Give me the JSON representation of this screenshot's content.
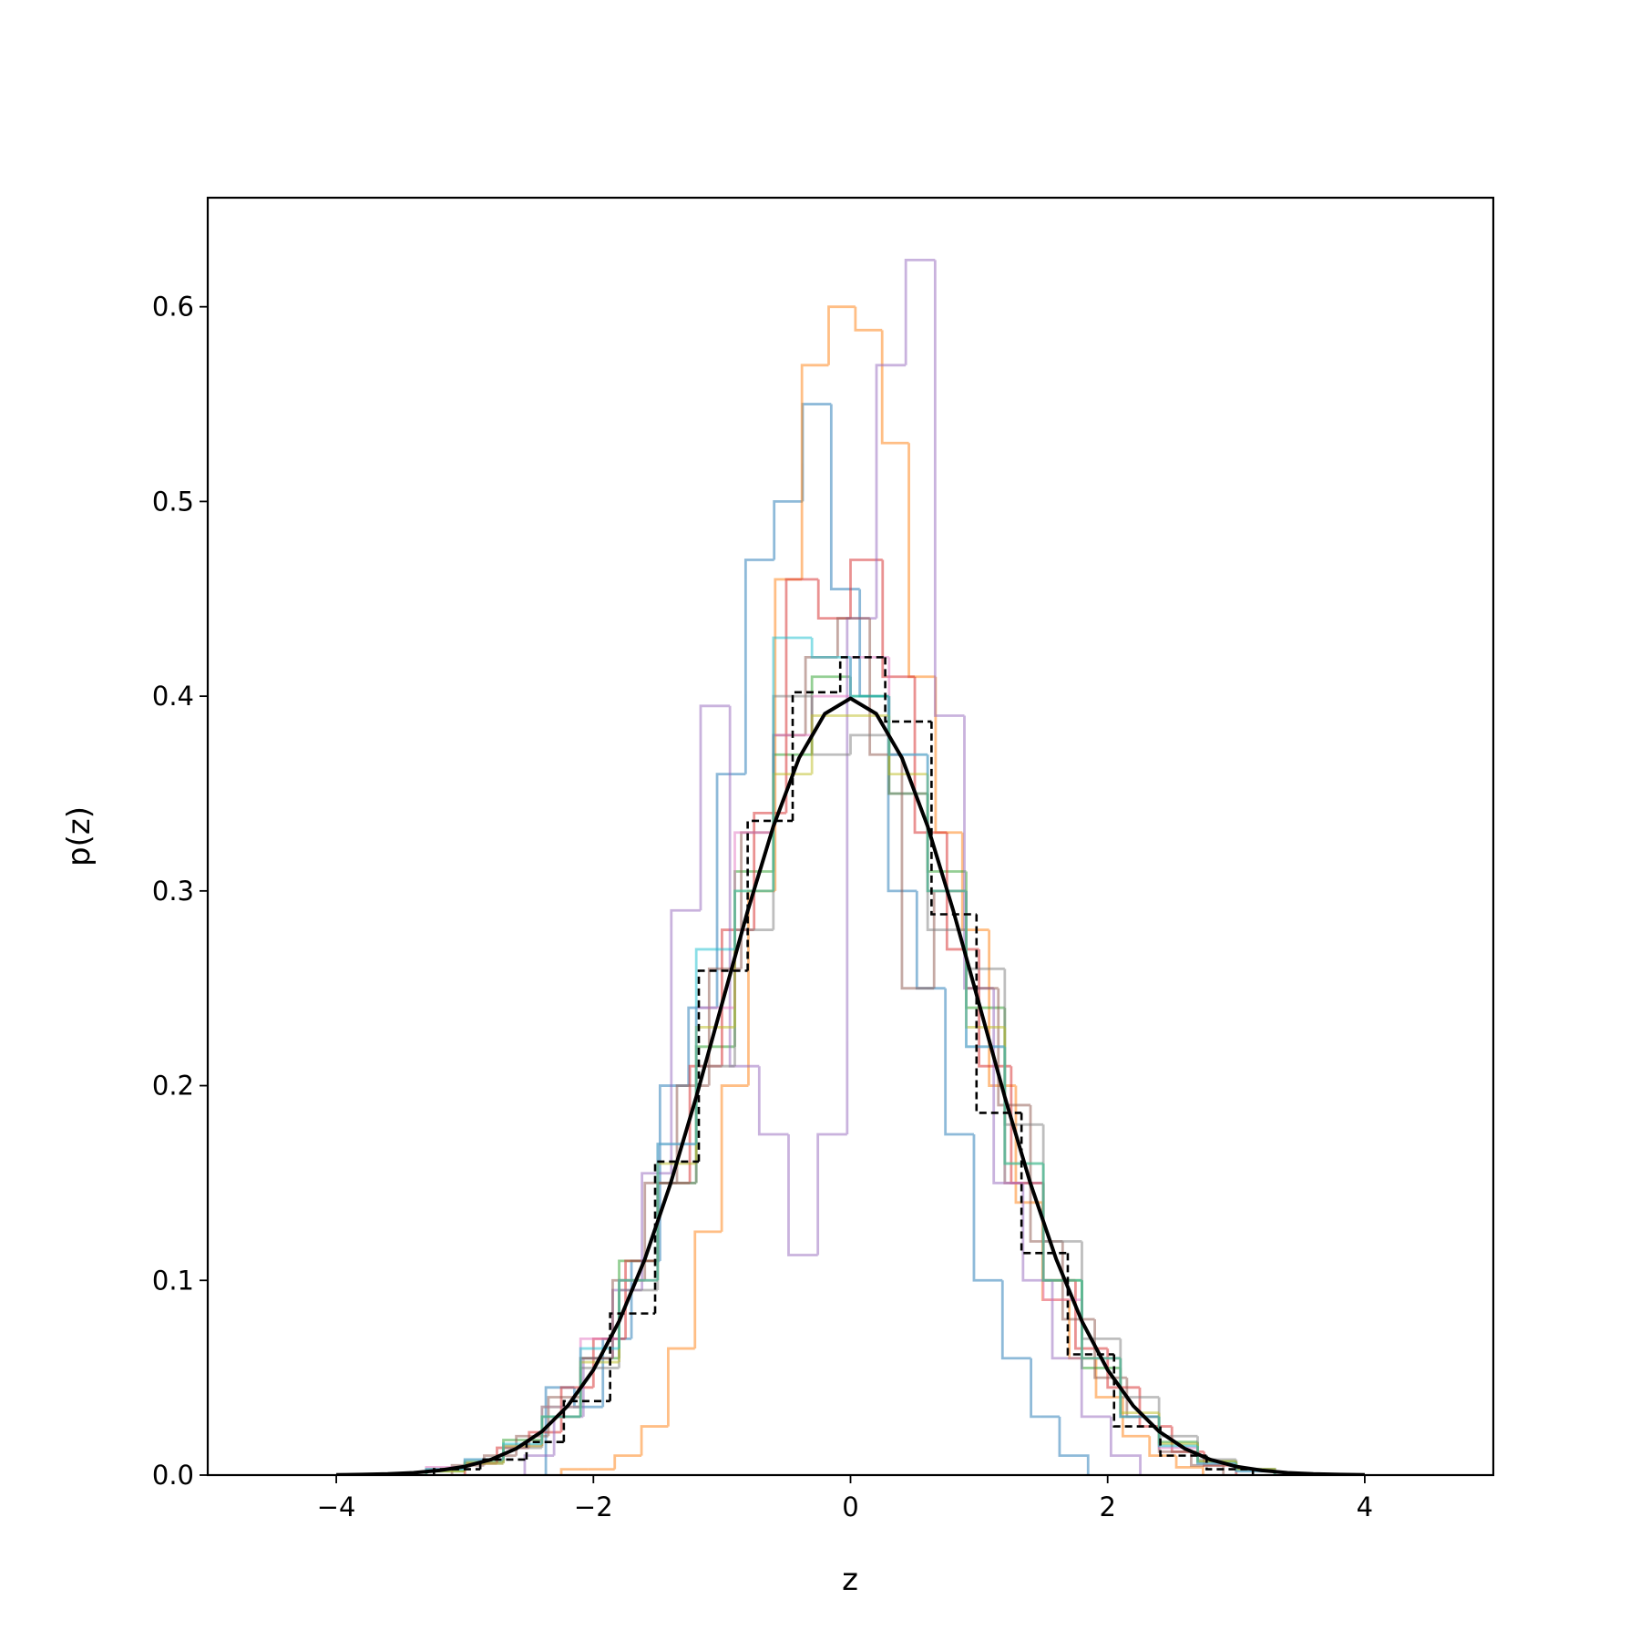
{
  "chart_data": {
    "type": "histogram",
    "xlabel": "z",
    "ylabel": "p(z)",
    "xlim": [
      -5,
      5
    ],
    "ylim": [
      0,
      0.656
    ],
    "xticks": [
      {
        "value": -4,
        "label": "−4"
      },
      {
        "value": -2,
        "label": "−2"
      },
      0,
      2,
      4
    ],
    "yticks": [
      {
        "value": 0,
        "label": "0.0"
      },
      0.1,
      0.2,
      0.3,
      0.4,
      0.5,
      0.6
    ],
    "series": [
      {
        "type": "step",
        "color": "#1f77b4",
        "alpha": 0.5,
        "bins": [
          -2.37,
          -2.148,
          -1.926,
          -1.704,
          -1.482,
          -1.26,
          -1.038,
          -0.816,
          -0.594,
          -0.372,
          -0.15,
          0.072,
          0.294,
          0.516,
          0.738,
          0.96,
          1.182,
          1.404,
          1.626,
          1.848
        ],
        "values": [
          0.045,
          0.035,
          0.07,
          0.11,
          0.2,
          0.24,
          0.36,
          0.47,
          0.5,
          0.55,
          0.455,
          0.4,
          0.3,
          0.25,
          0.175,
          0.1,
          0.06,
          0.03,
          0.01
        ]
      },
      {
        "type": "step",
        "color": "#ff7f0e",
        "alpha": 0.5,
        "bins": [
          -2.25,
          -2.042,
          -1.834,
          -1.626,
          -1.418,
          -1.21,
          -1.002,
          -0.794,
          -0.586,
          -0.378,
          -0.17,
          0.038,
          0.246,
          0.454,
          0.662,
          0.87,
          1.078,
          1.286,
          1.494,
          1.702,
          1.91,
          2.118,
          2.326,
          2.534,
          2.742
        ],
        "values": [
          0.003,
          0.003,
          0.01,
          0.025,
          0.065,
          0.125,
          0.2,
          0.3,
          0.46,
          0.57,
          0.6,
          0.588,
          0.53,
          0.41,
          0.33,
          0.28,
          0.2,
          0.14,
          0.09,
          0.06,
          0.04,
          0.02,
          0.01,
          0.004
        ]
      },
      {
        "type": "step",
        "color": "#2ca02c",
        "alpha": 0.5,
        "bins": [
          -3.3,
          -3.0,
          -2.7,
          -2.4,
          -2.1,
          -1.8,
          -1.5,
          -1.2,
          -0.9,
          -0.6,
          -0.3,
          0,
          0.3,
          0.6,
          0.9,
          1.2,
          1.5,
          1.8,
          2.1,
          2.4,
          2.7,
          3.0,
          3.3
        ],
        "values": [
          0.002,
          0.007,
          0.018,
          0.035,
          0.06,
          0.11,
          0.15,
          0.22,
          0.31,
          0.37,
          0.41,
          0.4,
          0.35,
          0.31,
          0.24,
          0.15,
          0.1,
          0.055,
          0.03,
          0.017,
          0.007,
          0.003
        ]
      },
      {
        "type": "step",
        "color": "#d62728",
        "alpha": 0.5,
        "bins": [
          -3.0,
          -2.75,
          -2.5,
          -2.25,
          -2.0,
          -1.75,
          -1.5,
          -1.25,
          -1.0,
          -0.75,
          -0.5,
          -0.25,
          0,
          0.25,
          0.5,
          0.75,
          1.0,
          1.25,
          1.5,
          1.75,
          2.0,
          2.25,
          2.5,
          2.75,
          3.0
        ],
        "values": [
          0.006,
          0.014,
          0.022,
          0.045,
          0.07,
          0.11,
          0.15,
          0.21,
          0.28,
          0.34,
          0.46,
          0.44,
          0.47,
          0.41,
          0.33,
          0.27,
          0.21,
          0.15,
          0.1,
          0.065,
          0.045,
          0.025,
          0.012,
          0.005
        ]
      },
      {
        "type": "step",
        "color": "#9467bd",
        "alpha": 0.5,
        "bins": [
          -2.534,
          -2.306,
          -2.078,
          -1.85,
          -1.622,
          -1.394,
          -1.166,
          -0.938,
          -0.71,
          -0.482,
          -0.254,
          -0.026,
          0.202,
          0.43,
          0.658,
          0.886,
          1.114,
          1.342,
          1.57,
          1.798,
          2.026,
          2.254
        ],
        "values": [
          0.01,
          0.03,
          0.06,
          0.095,
          0.155,
          0.29,
          0.395,
          0.21,
          0.175,
          0.113,
          0.175,
          0.44,
          0.57,
          0.624,
          0.39,
          0.25,
          0.15,
          0.1,
          0.06,
          0.03,
          0.01
        ]
      },
      {
        "type": "step",
        "color": "#8c564b",
        "alpha": 0.5,
        "bins": [
          -3.1,
          -2.85,
          -2.6,
          -2.35,
          -2.1,
          -1.85,
          -1.6,
          -1.35,
          -1.1,
          -0.85,
          -0.6,
          -0.35,
          -0.1,
          0.15,
          0.4,
          0.65,
          0.9,
          1.15,
          1.4,
          1.65,
          1.9,
          2.15,
          2.4,
          2.65,
          2.9
        ],
        "values": [
          0.005,
          0.01,
          0.02,
          0.04,
          0.06,
          0.1,
          0.15,
          0.2,
          0.26,
          0.33,
          0.38,
          0.42,
          0.44,
          0.37,
          0.25,
          0.3,
          0.25,
          0.19,
          0.12,
          0.08,
          0.05,
          0.03,
          0.012,
          0.005
        ]
      },
      {
        "type": "step",
        "color": "#e377c2",
        "alpha": 0.5,
        "bins": [
          -3.3,
          -3.0,
          -2.7,
          -2.4,
          -2.1,
          -1.8,
          -1.5,
          -1.2,
          -0.9,
          -0.6,
          -0.3,
          0,
          0.3,
          0.6,
          0.9,
          1.2,
          1.5,
          1.8,
          2.1,
          2.4,
          2.7,
          3.0,
          3.3
        ],
        "values": [
          0.004,
          0.008,
          0.015,
          0.035,
          0.07,
          0.1,
          0.17,
          0.24,
          0.33,
          0.38,
          0.4,
          0.42,
          0.37,
          0.3,
          0.22,
          0.15,
          0.09,
          0.06,
          0.03,
          0.014,
          0.006,
          0.002
        ]
      },
      {
        "type": "step",
        "color": "#7f7f7f",
        "alpha": 0.5,
        "bins": [
          -3.3,
          -3.0,
          -2.7,
          -2.4,
          -2.1,
          -1.8,
          -1.5,
          -1.2,
          -0.9,
          -0.6,
          -0.3,
          0,
          0.3,
          0.6,
          0.9,
          1.2,
          1.5,
          1.8,
          2.1,
          2.4,
          2.7,
          3.0,
          3.3
        ],
        "values": [
          0.003,
          0.006,
          0.014,
          0.03,
          0.055,
          0.095,
          0.15,
          0.21,
          0.28,
          0.4,
          0.37,
          0.38,
          0.35,
          0.28,
          0.26,
          0.18,
          0.12,
          0.07,
          0.04,
          0.02,
          0.008,
          0.003
        ]
      },
      {
        "type": "step",
        "color": "#bcbd22",
        "alpha": 0.5,
        "bins": [
          -3.3,
          -3.0,
          -2.7,
          -2.4,
          -2.1,
          -1.8,
          -1.5,
          -1.2,
          -0.9,
          -0.6,
          -0.3,
          0,
          0.3,
          0.6,
          0.9,
          1.2,
          1.5,
          1.8,
          2.1,
          2.4,
          2.7,
          3.0,
          3.3
        ],
        "values": [
          0.002,
          0.006,
          0.015,
          0.03,
          0.058,
          0.1,
          0.16,
          0.23,
          0.3,
          0.36,
          0.39,
          0.39,
          0.36,
          0.3,
          0.23,
          0.16,
          0.1,
          0.06,
          0.032,
          0.016,
          0.007,
          0.003
        ]
      },
      {
        "type": "step",
        "color": "#17becf",
        "alpha": 0.5,
        "bins": [
          -3.3,
          -3.0,
          -2.7,
          -2.4,
          -2.1,
          -1.8,
          -1.5,
          -1.2,
          -0.9,
          -0.6,
          -0.3,
          0,
          0.3,
          0.6,
          0.9,
          1.2,
          1.5,
          1.8,
          2.1,
          2.4,
          2.7,
          3.0,
          3.3
        ],
        "values": [
          0.003,
          0.008,
          0.016,
          0.03,
          0.065,
          0.1,
          0.17,
          0.27,
          0.3,
          0.43,
          0.42,
          0.4,
          0.37,
          0.3,
          0.22,
          0.16,
          0.1,
          0.06,
          0.03,
          0.015,
          0.006,
          0.002
        ]
      },
      {
        "type": "step",
        "color": "#000000",
        "alpha": 1,
        "linestyle": "dashed",
        "bins": [
          -3.24,
          -2.88,
          -2.52,
          -2.23,
          -1.87,
          -1.52,
          -1.18,
          -0.8,
          -0.45,
          -0.08,
          0.27,
          0.63,
          0.98,
          1.33,
          1.69,
          2.05,
          2.41,
          2.77,
          3.13
        ],
        "values": [
          0.003,
          0.008,
          0.017,
          0.038,
          0.083,
          0.161,
          0.259,
          0.336,
          0.402,
          0.42,
          0.387,
          0.288,
          0.186,
          0.114,
          0.062,
          0.025,
          0.01,
          0.003
        ]
      },
      {
        "type": "line",
        "color": "#000000",
        "alpha": 1,
        "x": [
          -4,
          -3.8,
          -3.6,
          -3.4,
          -3.2,
          -3,
          -2.8,
          -2.6,
          -2.4,
          -2.2,
          -2,
          -1.8,
          -1.6,
          -1.4,
          -1.2,
          -1,
          -0.8,
          -0.6,
          -0.4,
          -0.2,
          0,
          0.2,
          0.4,
          0.6,
          0.8,
          1,
          1.2,
          1.4,
          1.6,
          1.8,
          2,
          2.2,
          2.4,
          2.6,
          2.8,
          3,
          3.2,
          3.4,
          3.6,
          3.8,
          4
        ],
        "values": [
          0.0001,
          0.0003,
          0.0006,
          0.0012,
          0.0024,
          0.0044,
          0.0079,
          0.0136,
          0.0224,
          0.0355,
          0.054,
          0.079,
          0.1109,
          0.1497,
          0.1942,
          0.242,
          0.2897,
          0.3332,
          0.3683,
          0.391,
          0.3989,
          0.391,
          0.3683,
          0.3332,
          0.2897,
          0.242,
          0.1942,
          0.1497,
          0.1109,
          0.079,
          0.054,
          0.0355,
          0.0224,
          0.0136,
          0.0079,
          0.0044,
          0.0024,
          0.0012,
          0.0006,
          0.0003,
          0.0001
        ]
      }
    ]
  }
}
